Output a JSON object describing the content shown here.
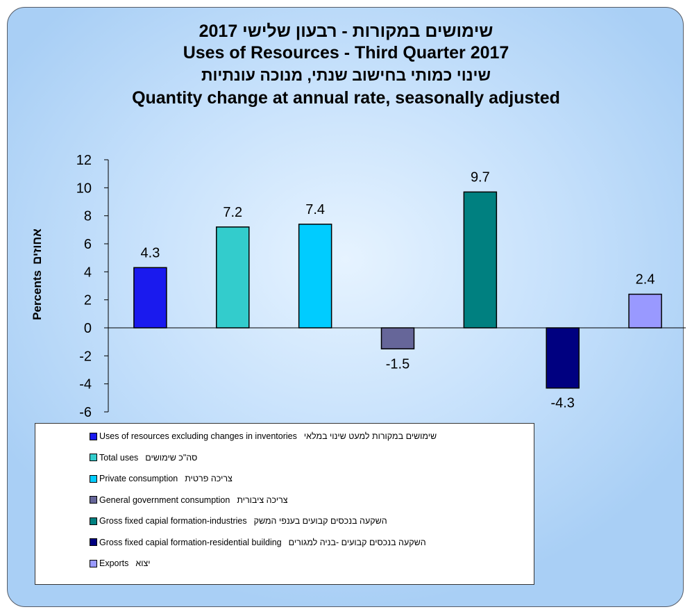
{
  "titles": {
    "he_main": "שימושים במקורות - רבעון שלישי 2017",
    "en_main": "Uses of Resources - Third Quarter 2017",
    "he_sub": "שינוי כמותי בחישוב שנתי, מנוכה עונתיות",
    "en_sub": "Quantity change at annual rate, seasonally adjusted"
  },
  "axis": {
    "ylabel_en": "Percents",
    "ylabel_he": "אחוזים"
  },
  "chart_data": {
    "type": "bar",
    "title": "Uses of Resources - Third Quarter 2017",
    "subtitle": "Quantity change at annual rate, seasonally adjusted",
    "ylabel": "Percents אחוזים",
    "ylim": [
      -6,
      12
    ],
    "yticks": [
      -6,
      -4,
      -2,
      0,
      2,
      4,
      6,
      8,
      10,
      12
    ],
    "grid": false,
    "legend_position": "bottom",
    "categories": [
      "Uses of resources excluding changes in inventories",
      "Total uses",
      "Private consumption",
      "General government consumption",
      "Gross fixed capial formation-industries",
      "Gross fixed capial formation-residential building",
      "Exports"
    ],
    "values": [
      4.3,
      7.2,
      7.4,
      -1.5,
      9.7,
      -4.3,
      2.4
    ],
    "labels": [
      "4.3",
      "7.2",
      "7.4",
      "-1.5",
      "9.7",
      "-4.3",
      "2.4"
    ],
    "colors": [
      "#1a1aee",
      "#33cccc",
      "#00ccff",
      "#666699",
      "#008080",
      "#000080",
      "#9999ff"
    ]
  },
  "legend": [
    {
      "en": "Uses of resources excluding changes in inventories",
      "he": "שימושים במקורות למעט שינוי במלאי",
      "color": "#1a1aee"
    },
    {
      "en": "Total uses",
      "he": "סה\"כ שימושים",
      "color": "#33cccc"
    },
    {
      "en": "Private consumption",
      "he": "צריכה פרטית",
      "color": "#00ccff"
    },
    {
      "en": "General government  consumption",
      "he": "צריכה ציבורית",
      "color": "#666699"
    },
    {
      "en": "Gross fixed capial formation-industries",
      "he": "השקעה בנכסים קבועים בענפי המשק",
      "color": "#008080"
    },
    {
      "en": "Gross fixed capial formation-residential  building",
      "he": "השקעה בנכסים קבועים -בניה למגורים",
      "color": "#000080"
    },
    {
      "en": "Exports",
      "he": "יצוא",
      "color": "#9999ff"
    }
  ]
}
